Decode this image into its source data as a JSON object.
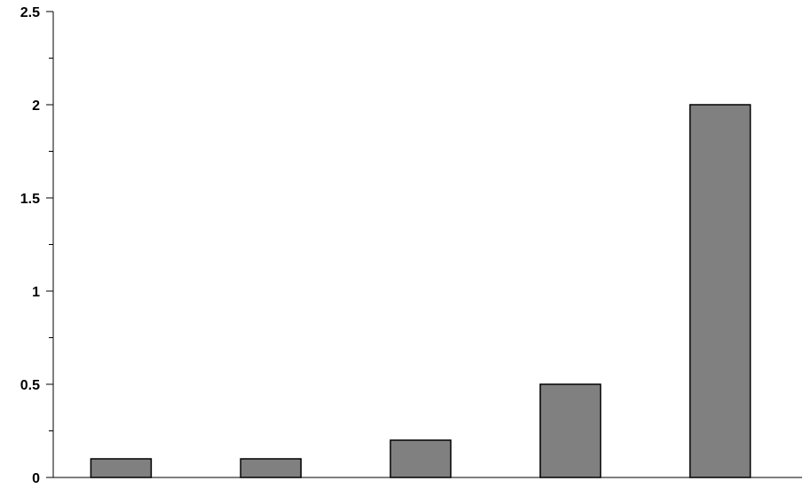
{
  "chart_data": {
    "type": "bar",
    "title": "",
    "xlabel": "",
    "ylabel": "",
    "categories": [
      "",
      "",
      "",
      "",
      ""
    ],
    "values": [
      0.1,
      0.1,
      0.2,
      0.5,
      2.0
    ],
    "ylim": [
      0,
      2.5
    ],
    "y_major_ticks": [
      {
        "value": 0,
        "label": "0"
      },
      {
        "value": 0.5,
        "label": "0.5"
      },
      {
        "value": 1,
        "label": "1"
      },
      {
        "value": 1.5,
        "label": "1.5"
      },
      {
        "value": 2,
        "label": "2"
      },
      {
        "value": 2.5,
        "label": "2.5"
      }
    ],
    "y_minor_step": 0.25,
    "grid": false,
    "legend": "none",
    "bar_color": "#808080",
    "bar_edge_color": "#000000"
  }
}
